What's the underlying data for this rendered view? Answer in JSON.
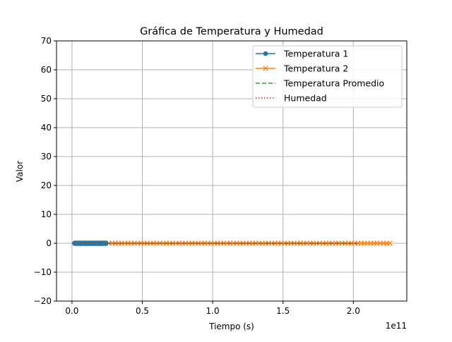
{
  "chart_data": {
    "type": "line",
    "title": "Gráfica de Temperatura y Humedad",
    "xlabel": "Tiempo (s)",
    "ylabel": "Valor",
    "x_offset_label": "1e11",
    "xlim": [
      -0.11,
      2.38
    ],
    "ylim": [
      -20,
      70
    ],
    "x_ticks": [
      {
        "value": 0.0,
        "label": "0.0"
      },
      {
        "value": 0.5,
        "label": "0.5"
      },
      {
        "value": 1.0,
        "label": "1.0"
      },
      {
        "value": 1.5,
        "label": "1.5"
      },
      {
        "value": 2.0,
        "label": "2.0"
      }
    ],
    "y_ticks": [
      {
        "value": -20,
        "label": "−20"
      },
      {
        "value": -10,
        "label": "−10"
      },
      {
        "value": 0,
        "label": "0"
      },
      {
        "value": 10,
        "label": "10"
      },
      {
        "value": 20,
        "label": "20"
      },
      {
        "value": 30,
        "label": "30"
      },
      {
        "value": 40,
        "label": "40"
      },
      {
        "value": 50,
        "label": "50"
      },
      {
        "value": 60,
        "label": "60"
      },
      {
        "value": 70,
        "label": "70"
      }
    ],
    "grid": true,
    "legend_position": "top-right",
    "series": [
      {
        "name": "Temperatura 1",
        "color": "#1f77b4",
        "style": "solid",
        "marker": "circle",
        "x_range": [
          0.02,
          0.24
        ],
        "y": 0,
        "points": 32
      },
      {
        "name": "Temperatura 2",
        "color": "#ff7f0e",
        "style": "solid",
        "marker": "x",
        "x_range": [
          0.24,
          2.26
        ],
        "y": 0,
        "points": 90
      },
      {
        "name": "Temperatura Promedio",
        "color": "#2ca02c",
        "style": "dashed",
        "marker": "none",
        "x_range": [
          0.02,
          2.03
        ],
        "y": 0
      },
      {
        "name": "Humedad",
        "color": "#d62728",
        "style": "dotted",
        "marker": "none",
        "x_range": [
          0.02,
          2.03
        ],
        "y": 0
      }
    ]
  }
}
